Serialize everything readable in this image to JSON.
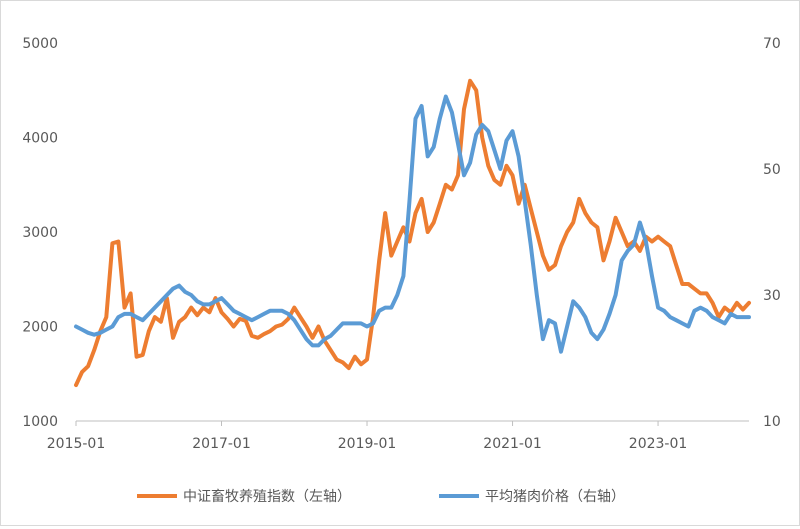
{
  "chart_data": {
    "type": "line",
    "title": "",
    "xlabel": "",
    "x_tick_labels": [
      "2015-01",
      "2017-01",
      "2019-01",
      "2021-01",
      "2023-01"
    ],
    "x_range": [
      "2015-01",
      "2024-04"
    ],
    "y_left": {
      "label": "",
      "ticks": [
        "5000",
        "4000",
        "3000",
        "2000",
        "1000"
      ],
      "range": [
        1000,
        5000
      ]
    },
    "y_right": {
      "label": "",
      "ticks": [
        "70",
        "50",
        "30",
        "10"
      ],
      "range": [
        10,
        70
      ]
    },
    "grid": false,
    "legend_position": "bottom",
    "series": [
      {
        "name": "中证畜牧养殖指数（左轴）",
        "axis": "left",
        "color": "#ED7D31",
        "points": [
          [
            "2015-01",
            1380
          ],
          [
            "2015-02",
            1520
          ],
          [
            "2015-03",
            1580
          ],
          [
            "2015-04",
            1750
          ],
          [
            "2015-05",
            1950
          ],
          [
            "2015-06",
            2100
          ],
          [
            "2015-07",
            2880
          ],
          [
            "2015-08",
            2900
          ],
          [
            "2015-09",
            2200
          ],
          [
            "2015-10",
            2350
          ],
          [
            "2015-11",
            1680
          ],
          [
            "2015-12",
            1700
          ],
          [
            "2016-01",
            1950
          ],
          [
            "2016-02",
            2100
          ],
          [
            "2016-03",
            2050
          ],
          [
            "2016-04",
            2300
          ],
          [
            "2016-05",
            1880
          ],
          [
            "2016-06",
            2050
          ],
          [
            "2016-07",
            2100
          ],
          [
            "2016-08",
            2200
          ],
          [
            "2016-09",
            2120
          ],
          [
            "2016-10",
            2200
          ],
          [
            "2016-11",
            2150
          ],
          [
            "2016-12",
            2300
          ],
          [
            "2017-01",
            2150
          ],
          [
            "2017-02",
            2080
          ],
          [
            "2017-03",
            2000
          ],
          [
            "2017-04",
            2080
          ],
          [
            "2017-05",
            2060
          ],
          [
            "2017-06",
            1900
          ],
          [
            "2017-07",
            1880
          ],
          [
            "2017-08",
            1920
          ],
          [
            "2017-09",
            1950
          ],
          [
            "2017-10",
            2000
          ],
          [
            "2017-11",
            2020
          ],
          [
            "2017-12",
            2080
          ],
          [
            "2018-01",
            2200
          ],
          [
            "2018-02",
            2100
          ],
          [
            "2018-03",
            2000
          ],
          [
            "2018-04",
            1880
          ],
          [
            "2018-05",
            2000
          ],
          [
            "2018-06",
            1850
          ],
          [
            "2018-07",
            1750
          ],
          [
            "2018-08",
            1650
          ],
          [
            "2018-09",
            1620
          ],
          [
            "2018-10",
            1560
          ],
          [
            "2018-11",
            1680
          ],
          [
            "2018-12",
            1600
          ],
          [
            "2019-01",
            1650
          ],
          [
            "2019-02",
            2100
          ],
          [
            "2019-03",
            2700
          ],
          [
            "2019-04",
            3200
          ],
          [
            "2019-05",
            2750
          ],
          [
            "2019-06",
            2900
          ],
          [
            "2019-07",
            3050
          ],
          [
            "2019-08",
            2900
          ],
          [
            "2019-09",
            3200
          ],
          [
            "2019-10",
            3350
          ],
          [
            "2019-11",
            3000
          ],
          [
            "2019-12",
            3100
          ],
          [
            "2020-01",
            3300
          ],
          [
            "2020-02",
            3500
          ],
          [
            "2020-03",
            3450
          ],
          [
            "2020-04",
            3600
          ],
          [
            "2020-05",
            4300
          ],
          [
            "2020-06",
            4600
          ],
          [
            "2020-07",
            4500
          ],
          [
            "2020-08",
            4000
          ],
          [
            "2020-09",
            3700
          ],
          [
            "2020-10",
            3550
          ],
          [
            "2020-11",
            3500
          ],
          [
            "2020-12",
            3700
          ],
          [
            "2021-01",
            3600
          ],
          [
            "2021-02",
            3300
          ],
          [
            "2021-03",
            3500
          ],
          [
            "2021-04",
            3250
          ],
          [
            "2021-05",
            3000
          ],
          [
            "2021-06",
            2750
          ],
          [
            "2021-07",
            2600
          ],
          [
            "2021-08",
            2650
          ],
          [
            "2021-09",
            2850
          ],
          [
            "2021-10",
            3000
          ],
          [
            "2021-11",
            3100
          ],
          [
            "2021-12",
            3350
          ],
          [
            "2022-01",
            3200
          ],
          [
            "2022-02",
            3100
          ],
          [
            "2022-03",
            3050
          ],
          [
            "2022-04",
            2700
          ],
          [
            "2022-05",
            2900
          ],
          [
            "2022-06",
            3150
          ],
          [
            "2022-07",
            3000
          ],
          [
            "2022-08",
            2850
          ],
          [
            "2022-09",
            2900
          ],
          [
            "2022-10",
            2800
          ],
          [
            "2022-11",
            2950
          ],
          [
            "2022-12",
            2900
          ],
          [
            "2023-01",
            2950
          ],
          [
            "2023-02",
            2900
          ],
          [
            "2023-03",
            2850
          ],
          [
            "2023-04",
            2650
          ],
          [
            "2023-05",
            2450
          ],
          [
            "2023-06",
            2450
          ],
          [
            "2023-07",
            2400
          ],
          [
            "2023-08",
            2350
          ],
          [
            "2023-09",
            2350
          ],
          [
            "2023-10",
            2250
          ],
          [
            "2023-11",
            2100
          ],
          [
            "2023-12",
            2200
          ],
          [
            "2024-01",
            2150
          ],
          [
            "2024-02",
            2250
          ],
          [
            "2024-03",
            2180
          ],
          [
            "2024-04",
            2250
          ]
        ]
      },
      {
        "name": "平均猪肉价格（右轴）",
        "axis": "right",
        "color": "#5B9BD5",
        "points": [
          [
            "2015-01",
            25.0
          ],
          [
            "2015-02",
            24.5
          ],
          [
            "2015-03",
            24.0
          ],
          [
            "2015-04",
            23.7
          ],
          [
            "2015-05",
            24.0
          ],
          [
            "2015-06",
            24.5
          ],
          [
            "2015-07",
            25.0
          ],
          [
            "2015-08",
            26.5
          ],
          [
            "2015-09",
            27.0
          ],
          [
            "2015-10",
            27.0
          ],
          [
            "2015-11",
            26.5
          ],
          [
            "2015-12",
            26.0
          ],
          [
            "2016-01",
            27.0
          ],
          [
            "2016-02",
            28.0
          ],
          [
            "2016-03",
            29.0
          ],
          [
            "2016-04",
            30.0
          ],
          [
            "2016-05",
            31.0
          ],
          [
            "2016-06",
            31.5
          ],
          [
            "2016-07",
            30.5
          ],
          [
            "2016-08",
            30.0
          ],
          [
            "2016-09",
            29.0
          ],
          [
            "2016-10",
            28.5
          ],
          [
            "2016-11",
            28.5
          ],
          [
            "2016-12",
            29.0
          ],
          [
            "2017-01",
            29.5
          ],
          [
            "2017-02",
            28.5
          ],
          [
            "2017-03",
            27.5
          ],
          [
            "2017-04",
            27.0
          ],
          [
            "2017-05",
            26.5
          ],
          [
            "2017-06",
            26.0
          ],
          [
            "2017-07",
            26.5
          ],
          [
            "2017-08",
            27.0
          ],
          [
            "2017-09",
            27.5
          ],
          [
            "2017-10",
            27.5
          ],
          [
            "2017-11",
            27.5
          ],
          [
            "2017-12",
            27.0
          ],
          [
            "2018-01",
            26.0
          ],
          [
            "2018-02",
            24.5
          ],
          [
            "2018-03",
            23.0
          ],
          [
            "2018-04",
            22.0
          ],
          [
            "2018-05",
            22.0
          ],
          [
            "2018-06",
            23.0
          ],
          [
            "2018-07",
            23.5
          ],
          [
            "2018-08",
            24.5
          ],
          [
            "2018-09",
            25.5
          ],
          [
            "2018-10",
            25.5
          ],
          [
            "2018-11",
            25.5
          ],
          [
            "2018-12",
            25.5
          ],
          [
            "2019-01",
            25.0
          ],
          [
            "2019-02",
            25.5
          ],
          [
            "2019-03",
            27.5
          ],
          [
            "2019-04",
            28.0
          ],
          [
            "2019-05",
            28.0
          ],
          [
            "2019-06",
            30.0
          ],
          [
            "2019-07",
            33.0
          ],
          [
            "2019-08",
            45.0
          ],
          [
            "2019-09",
            58.0
          ],
          [
            "2019-10",
            60.0
          ],
          [
            "2019-11",
            52.0
          ],
          [
            "2019-12",
            53.5
          ],
          [
            "2020-01",
            58.0
          ],
          [
            "2020-02",
            61.5
          ],
          [
            "2020-03",
            59.0
          ],
          [
            "2020-04",
            54.0
          ],
          [
            "2020-05",
            49.0
          ],
          [
            "2020-06",
            51.0
          ],
          [
            "2020-07",
            55.5
          ],
          [
            "2020-08",
            57.0
          ],
          [
            "2020-09",
            56.0
          ],
          [
            "2020-10",
            53.0
          ],
          [
            "2020-11",
            50.0
          ],
          [
            "2020-12",
            54.5
          ],
          [
            "2021-01",
            56.0
          ],
          [
            "2021-02",
            52.0
          ],
          [
            "2021-03",
            45.0
          ],
          [
            "2021-04",
            38.0
          ],
          [
            "2021-05",
            30.0
          ],
          [
            "2021-06",
            23.0
          ],
          [
            "2021-07",
            26.0
          ],
          [
            "2021-08",
            25.5
          ],
          [
            "2021-09",
            21.0
          ],
          [
            "2021-10",
            25.0
          ],
          [
            "2021-11",
            29.0
          ],
          [
            "2021-12",
            28.0
          ],
          [
            "2022-01",
            26.5
          ],
          [
            "2022-02",
            24.0
          ],
          [
            "2022-03",
            23.0
          ],
          [
            "2022-04",
            24.5
          ],
          [
            "2022-05",
            27.0
          ],
          [
            "2022-06",
            30.0
          ],
          [
            "2022-07",
            35.5
          ],
          [
            "2022-08",
            37.0
          ],
          [
            "2022-09",
            38.0
          ],
          [
            "2022-10",
            41.5
          ],
          [
            "2022-11",
            38.5
          ],
          [
            "2022-12",
            33.0
          ],
          [
            "2023-01",
            28.0
          ],
          [
            "2023-02",
            27.5
          ],
          [
            "2023-03",
            26.5
          ],
          [
            "2023-04",
            26.0
          ],
          [
            "2023-05",
            25.5
          ],
          [
            "2023-06",
            25.0
          ],
          [
            "2023-07",
            27.5
          ],
          [
            "2023-08",
            28.0
          ],
          [
            "2023-09",
            27.5
          ],
          [
            "2023-10",
            26.5
          ],
          [
            "2023-11",
            26.0
          ],
          [
            "2023-12",
            25.5
          ],
          [
            "2024-01",
            27.0
          ],
          [
            "2024-02",
            26.5
          ],
          [
            "2024-03",
            26.5
          ],
          [
            "2024-04",
            26.5
          ]
        ]
      }
    ]
  }
}
